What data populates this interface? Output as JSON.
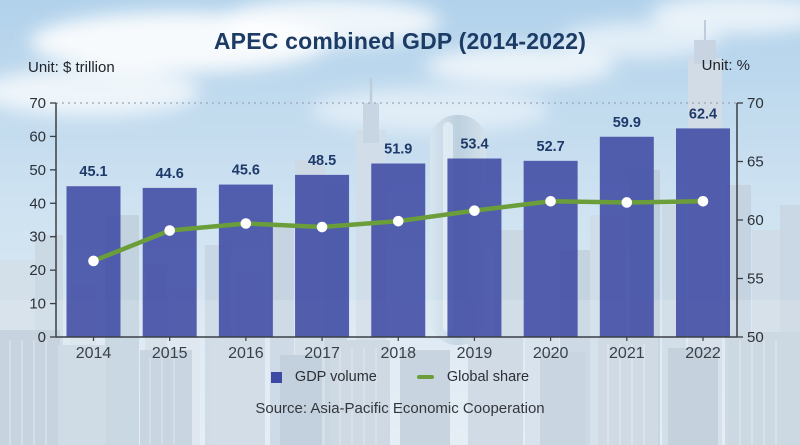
{
  "title": "APEC combined GDP (2014-2022)",
  "units": {
    "left": "Unit: $ trillion",
    "right": "Unit: %"
  },
  "source": "Source: Asia-Pacific Economic Cooperation",
  "legend": {
    "gdp": "GDP volume",
    "share": "Global share"
  },
  "colors": {
    "bar": "#3e49a3",
    "bar_label": "#1d3a6b",
    "line": "#6b9e3a",
    "dot": "#ffffff",
    "title": "#1c3c66",
    "axis": "#3a3f45",
    "tick_label": "#2c3138",
    "year_label": "#3a4049",
    "grid_dotted": "#9aa7b5"
  },
  "chart_data": {
    "type": "bar",
    "title": "APEC combined GDP (2014-2022)",
    "categories": [
      "2014",
      "2015",
      "2016",
      "2017",
      "2018",
      "2019",
      "2020",
      "2021",
      "2022"
    ],
    "series": [
      {
        "name": "GDP volume",
        "type": "bar",
        "axis": "left",
        "unit": "$ trillion",
        "values": [
          45.1,
          44.6,
          45.6,
          48.5,
          51.9,
          53.4,
          52.7,
          59.9,
          62.4
        ],
        "labels_shown": true
      },
      {
        "name": "Global share",
        "type": "line",
        "axis": "right",
        "unit": "%",
        "values": [
          56.5,
          59.1,
          59.7,
          59.4,
          59.9,
          60.8,
          61.6,
          61.5,
          61.6
        ],
        "labels_shown": false,
        "note": "values estimated from marker positions; no data labels in image"
      }
    ],
    "left_axis": {
      "label": "Unit: $ trillion",
      "range": [
        0,
        70
      ],
      "ticks": [
        0,
        10,
        20,
        30,
        40,
        50,
        60,
        70
      ]
    },
    "right_axis": {
      "label": "Unit: %",
      "range": [
        50,
        70
      ],
      "ticks": [
        50,
        55,
        60,
        65,
        70
      ]
    },
    "legend_position": "bottom",
    "grid": "single dotted horizontal line at top (70)"
  }
}
